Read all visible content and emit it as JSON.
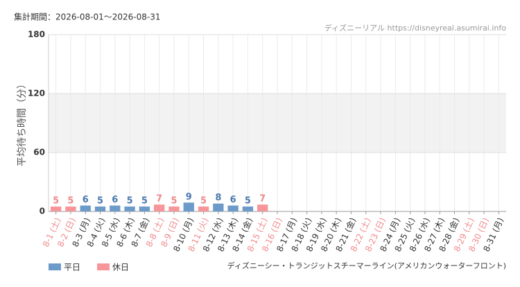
{
  "chart_data": {
    "type": "bar",
    "title": "集計期間：2026-08-01～2026-08-31",
    "source": "ディズニーリアル https://disneyreal.asumirai.info",
    "y_label": "平均待ち時間（分）",
    "footer": "ディズニーシー・トランジットスチーマーライン(アメリカンウォーターフロント)",
    "categories": [
      "8-1 (土)",
      "8-2 (日)",
      "8-3 (月)",
      "8-4 (火)",
      "8-5 (水)",
      "8-6 (木)",
      "8-7 (金)",
      "8-8 (土)",
      "8-9 (日)",
      "8-10 (月)",
      "8-11 (火)",
      "8-12 (水)",
      "8-13 (木)",
      "8-14 (金)",
      "8-15 (土)",
      "8-16 (日)",
      "8-17 (月)",
      "8-18 (火)",
      "8-19 (水)",
      "8-20 (木)",
      "8-21 (金)",
      "8-22 (土)",
      "8-23 (日)",
      "8-24 (月)",
      "8-25 (火)",
      "8-26 (水)",
      "8-27 (木)",
      "8-28 (金)",
      "8-29 (土)",
      "8-30 (日)",
      "8-31 (月)"
    ],
    "category_colors": [
      "#f08a8c",
      "#f08a8c",
      "#333333",
      "#333333",
      "#333333",
      "#333333",
      "#333333",
      "#f08a8c",
      "#f08a8c",
      "#333333",
      "#f08a8c",
      "#333333",
      "#333333",
      "#333333",
      "#f08a8c",
      "#f08a8c",
      "#333333",
      "#333333",
      "#333333",
      "#333333",
      "#333333",
      "#f08a8c",
      "#f08a8c",
      "#333333",
      "#333333",
      "#333333",
      "#333333",
      "#333333",
      "#f08a8c",
      "#f08a8c",
      "#333333"
    ],
    "series": [
      {
        "name": "平日",
        "color": "#6d9bc9",
        "label_color": "#4a7ab0",
        "values": [
          null,
          null,
          6,
          5,
          6,
          5,
          5,
          null,
          null,
          9,
          null,
          8,
          6,
          5,
          null,
          null,
          null,
          null,
          null,
          null,
          null,
          null,
          null,
          null,
          null,
          null,
          null,
          null,
          null,
          null,
          null
        ]
      },
      {
        "name": "休日",
        "color": "#f7969a",
        "label_color": "#f08a8c",
        "values": [
          5,
          5,
          null,
          null,
          null,
          null,
          null,
          7,
          5,
          null,
          5,
          null,
          null,
          null,
          7,
          null,
          null,
          null,
          null,
          null,
          null,
          null,
          null,
          null,
          null,
          null,
          null,
          null,
          null,
          null,
          null
        ]
      }
    ],
    "ylim": [
      0,
      180
    ],
    "yticks": [
      0,
      60,
      120,
      180
    ],
    "grid": true
  }
}
